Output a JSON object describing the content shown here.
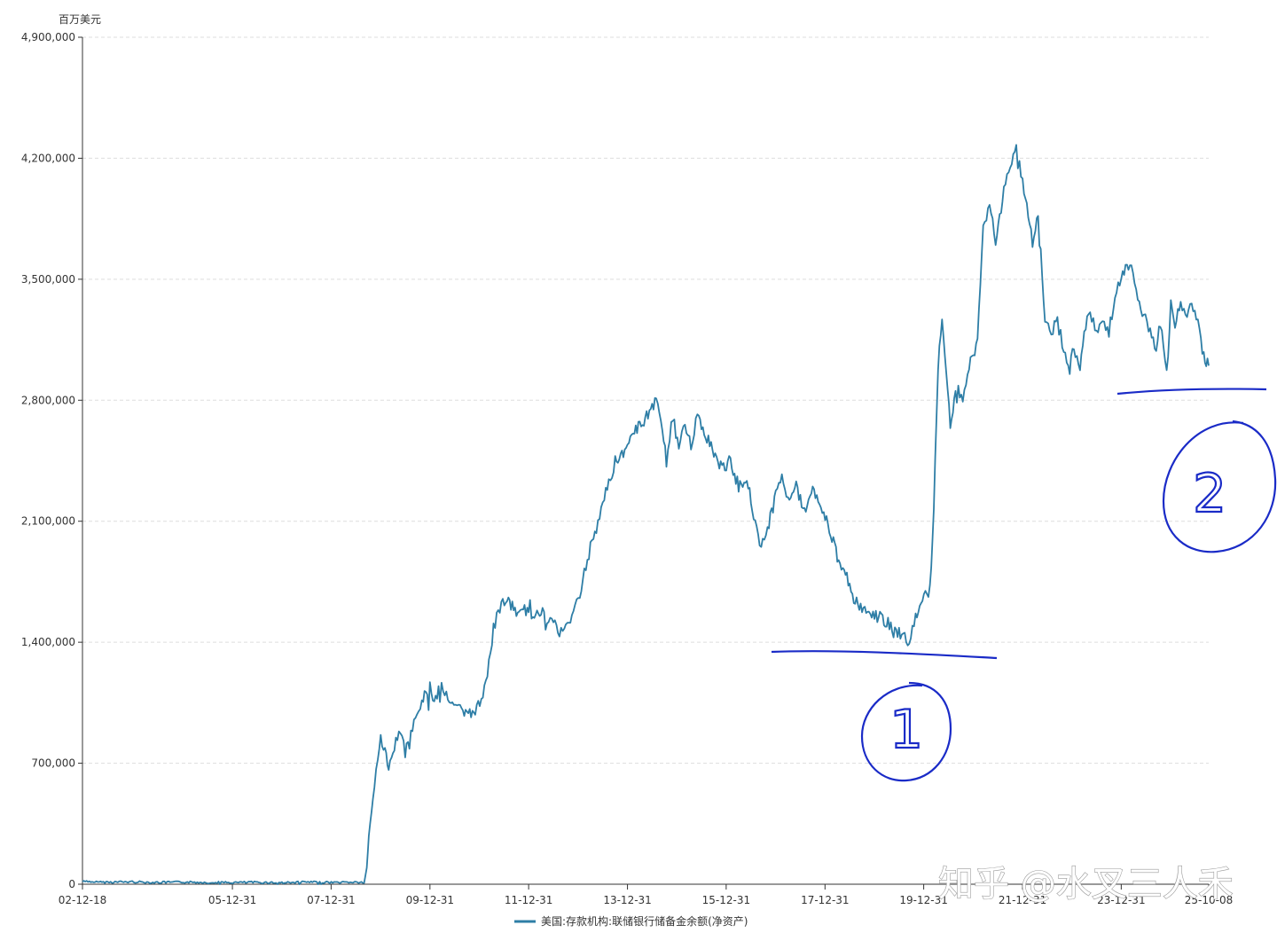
{
  "chart_data": {
    "type": "line",
    "unit": "百万美元",
    "y_ticks": [
      {
        "value": 0,
        "label": "0"
      },
      {
        "value": 700000,
        "label": "700,000"
      },
      {
        "value": 1400000,
        "label": "1,400,000"
      },
      {
        "value": 2100000,
        "label": "2,100,000"
      },
      {
        "value": 2800000,
        "label": "2,800,000"
      },
      {
        "value": 3500000,
        "label": "3,500,000"
      },
      {
        "value": 4200000,
        "label": "4,200,000"
      },
      {
        "value": 4900000,
        "label": "4,900,000"
      }
    ],
    "ylim": [
      0,
      4900000
    ],
    "xlim": [
      "2002-12-18",
      "2025-10-08"
    ],
    "x_ticks": [
      {
        "date": "2002-12-18",
        "label": "02-12-18"
      },
      {
        "date": "2005-12-31",
        "label": "05-12-31"
      },
      {
        "date": "2007-12-31",
        "label": "07-12-31"
      },
      {
        "date": "2009-12-31",
        "label": "09-12-31"
      },
      {
        "date": "2011-12-31",
        "label": "11-12-31"
      },
      {
        "date": "2013-12-31",
        "label": "13-12-31"
      },
      {
        "date": "2015-12-31",
        "label": "15-12-31"
      },
      {
        "date": "2017-12-31",
        "label": "17-12-31"
      },
      {
        "date": "2019-12-31",
        "label": "19-12-31"
      },
      {
        "date": "2021-12-31",
        "label": "21-12-31"
      },
      {
        "date": "2023-12-31",
        "label": "23-12-31"
      },
      {
        "date": "2025-10-08",
        "label": "25-10-08"
      }
    ],
    "grid": true,
    "legend_position": "bottom-center",
    "series": [
      {
        "name": "美国:存款机构:联储银行储备金余额(净资产)",
        "color": "#2e7ea6",
        "points": [
          [
            "2002-12-18",
            15000
          ],
          [
            "2003-06-01",
            12000
          ],
          [
            "2004-01-01",
            14000
          ],
          [
            "2004-06-01",
            10000
          ],
          [
            "2005-01-01",
            12000
          ],
          [
            "2005-12-01",
            9000
          ],
          [
            "2006-06-01",
            11000
          ],
          [
            "2007-01-01",
            8000
          ],
          [
            "2007-06-01",
            12000
          ],
          [
            "2008-01-01",
            10000
          ],
          [
            "2008-06-01",
            12000
          ],
          [
            "2008-08-31",
            10000
          ],
          [
            "2008-09-20",
            90000
          ],
          [
            "2008-10-05",
            280000
          ],
          [
            "2008-10-25",
            420000
          ],
          [
            "2008-11-15",
            580000
          ],
          [
            "2008-12-10",
            780000
          ],
          [
            "2009-01-01",
            850000
          ],
          [
            "2009-02-01",
            780000
          ],
          [
            "2009-03-01",
            650000
          ],
          [
            "2009-04-01",
            760000
          ],
          [
            "2009-05-15",
            900000
          ],
          [
            "2009-07-01",
            760000
          ],
          [
            "2009-08-01",
            820000
          ],
          [
            "2009-09-15",
            960000
          ],
          [
            "2009-11-01",
            1050000
          ],
          [
            "2009-12-31",
            1150000
          ],
          [
            "2010-02-01",
            1050000
          ],
          [
            "2010-03-15",
            1160000
          ],
          [
            "2010-05-01",
            1100000
          ],
          [
            "2010-06-15",
            1040000
          ],
          [
            "2010-08-01",
            1020000
          ],
          [
            "2010-10-01",
            970000
          ],
          [
            "2010-12-01",
            1010000
          ],
          [
            "2011-01-15",
            1050000
          ],
          [
            "2011-03-01",
            1230000
          ],
          [
            "2011-04-15",
            1480000
          ],
          [
            "2011-06-01",
            1600000
          ],
          [
            "2011-07-15",
            1650000
          ],
          [
            "2011-09-01",
            1600000
          ],
          [
            "2011-11-01",
            1560000
          ],
          [
            "2011-12-31",
            1600000
          ],
          [
            "2012-02-01",
            1540000
          ],
          [
            "2012-04-01",
            1580000
          ],
          [
            "2012-05-15",
            1540000
          ],
          [
            "2012-07-01",
            1520000
          ],
          [
            "2012-08-15",
            1450000
          ],
          [
            "2012-10-01",
            1480000
          ],
          [
            "2012-11-15",
            1550000
          ],
          [
            "2013-01-01",
            1650000
          ],
          [
            "2013-02-15",
            1800000
          ],
          [
            "2013-04-01",
            1950000
          ],
          [
            "2013-05-15",
            2050000
          ],
          [
            "2013-07-01",
            2200000
          ],
          [
            "2013-08-15",
            2320000
          ],
          [
            "2013-10-01",
            2450000
          ],
          [
            "2013-12-31",
            2520000
          ],
          [
            "2014-02-01",
            2600000
          ],
          [
            "2014-04-01",
            2650000
          ],
          [
            "2014-06-01",
            2720000
          ],
          [
            "2014-08-01",
            2800000
          ],
          [
            "2014-09-15",
            2650000
          ],
          [
            "2014-10-15",
            2450000
          ],
          [
            "2014-12-01",
            2700000
          ],
          [
            "2015-01-15",
            2520000
          ],
          [
            "2015-03-01",
            2650000
          ],
          [
            "2015-04-15",
            2550000
          ],
          [
            "2015-06-01",
            2700000
          ],
          [
            "2015-08-01",
            2600000
          ],
          [
            "2015-10-01",
            2500000
          ],
          [
            "2015-12-01",
            2400000
          ],
          [
            "2016-02-01",
            2450000
          ],
          [
            "2016-04-01",
            2300000
          ],
          [
            "2016-06-01",
            2350000
          ],
          [
            "2016-08-01",
            2100000
          ],
          [
            "2016-09-15",
            1950000
          ],
          [
            "2016-11-01",
            2050000
          ],
          [
            "2017-01-01",
            2250000
          ],
          [
            "2017-02-15",
            2350000
          ],
          [
            "2017-04-01",
            2250000
          ],
          [
            "2017-06-01",
            2300000
          ],
          [
            "2017-08-01",
            2150000
          ],
          [
            "2017-10-01",
            2300000
          ],
          [
            "2017-12-01",
            2200000
          ],
          [
            "2018-02-01",
            2050000
          ],
          [
            "2018-04-01",
            1900000
          ],
          [
            "2018-06-01",
            1800000
          ],
          [
            "2018-08-01",
            1650000
          ],
          [
            "2018-10-01",
            1600000
          ],
          [
            "2018-12-01",
            1550000
          ],
          [
            "2019-02-01",
            1550000
          ],
          [
            "2019-04-01",
            1520000
          ],
          [
            "2019-06-01",
            1450000
          ],
          [
            "2019-08-01",
            1450000
          ],
          [
            "2019-09-15",
            1380000
          ],
          [
            "2019-11-01",
            1550000
          ],
          [
            "2020-01-01",
            1650000
          ],
          [
            "2020-02-15",
            1700000
          ],
          [
            "2020-03-15",
            2200000
          ],
          [
            "2020-04-15",
            3000000
          ],
          [
            "2020-05-15",
            3250000
          ],
          [
            "2020-06-15",
            2950000
          ],
          [
            "2020-07-15",
            2650000
          ],
          [
            "2020-09-01",
            2900000
          ],
          [
            "2020-10-15",
            2800000
          ],
          [
            "2020-12-01",
            3000000
          ],
          [
            "2021-02-01",
            3150000
          ],
          [
            "2021-03-15",
            3800000
          ],
          [
            "2021-05-01",
            3950000
          ],
          [
            "2021-06-15",
            3700000
          ],
          [
            "2021-07-15",
            3850000
          ],
          [
            "2021-08-15",
            4050000
          ],
          [
            "2021-10-01",
            4150000
          ],
          [
            "2021-11-15",
            4250000
          ],
          [
            "2021-12-31",
            4050000
          ],
          [
            "2022-02-01",
            3950000
          ],
          [
            "2022-03-15",
            3700000
          ],
          [
            "2022-04-15",
            3850000
          ],
          [
            "2022-05-15",
            3650000
          ],
          [
            "2022-06-15",
            3250000
          ],
          [
            "2022-08-01",
            3200000
          ],
          [
            "2022-09-15",
            3250000
          ],
          [
            "2022-11-01",
            3100000
          ],
          [
            "2022-12-15",
            3000000
          ],
          [
            "2023-01-15",
            3100000
          ],
          [
            "2023-03-01",
            3000000
          ],
          [
            "2023-04-01",
            3200000
          ],
          [
            "2023-05-15",
            3300000
          ],
          [
            "2023-07-01",
            3200000
          ],
          [
            "2023-08-15",
            3250000
          ],
          [
            "2023-10-01",
            3200000
          ],
          [
            "2023-11-15",
            3400000
          ],
          [
            "2023-12-31",
            3500000
          ],
          [
            "2024-02-01",
            3550000
          ],
          [
            "2024-03-15",
            3600000
          ],
          [
            "2024-05-01",
            3350000
          ],
          [
            "2024-06-15",
            3300000
          ],
          [
            "2024-08-01",
            3200000
          ],
          [
            "2024-09-15",
            3100000
          ],
          [
            "2024-10-15",
            3250000
          ],
          [
            "2024-12-01",
            2950000
          ],
          [
            "2025-01-01",
            3350000
          ],
          [
            "2025-02-01",
            3200000
          ],
          [
            "2025-03-15",
            3400000
          ],
          [
            "2025-05-01",
            3300000
          ],
          [
            "2025-06-15",
            3350000
          ],
          [
            "2025-08-01",
            3200000
          ],
          [
            "2025-09-01",
            3050000
          ],
          [
            "2025-10-08",
            3000000
          ]
        ]
      }
    ]
  },
  "watermark": "知乎 @水叉三人禾",
  "annotations": [
    {
      "label": "1"
    },
    {
      "label": "2"
    }
  ]
}
